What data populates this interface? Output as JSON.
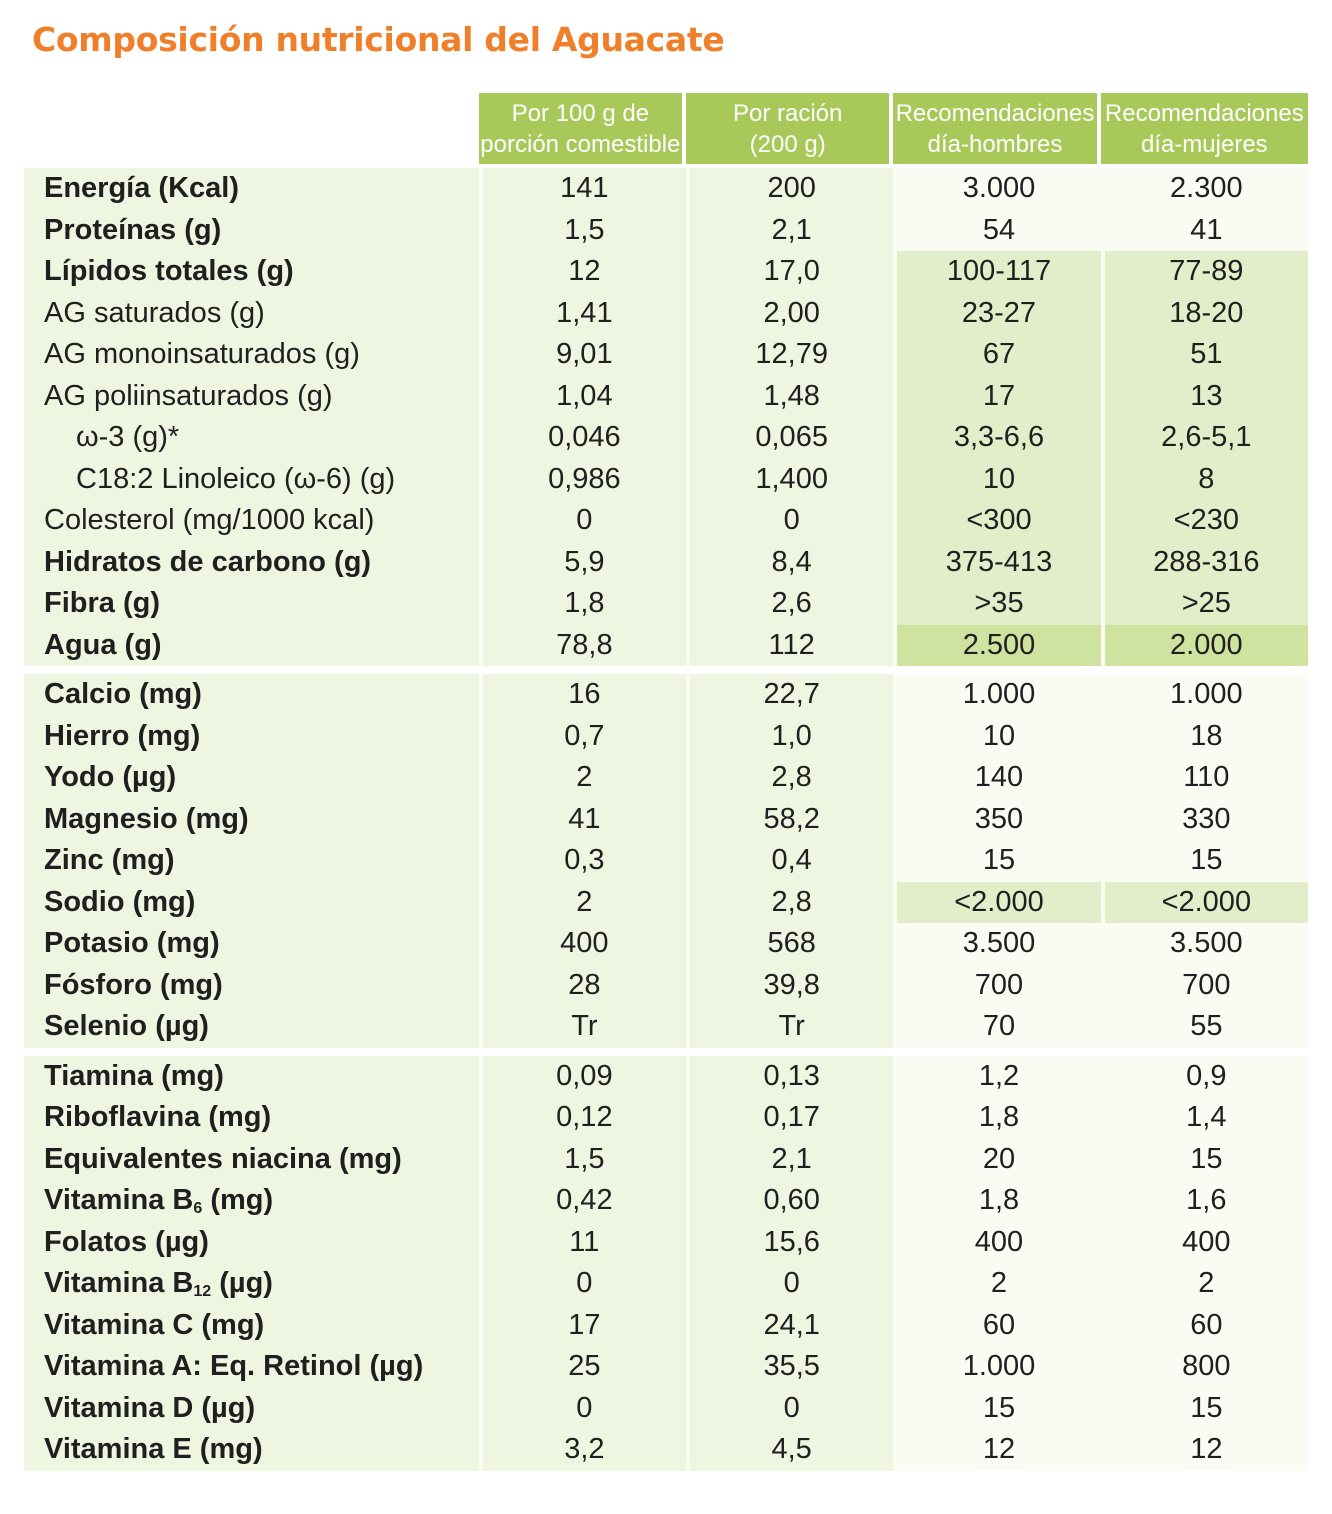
{
  "title": "Composición nutricional del Aguacate",
  "columns": {
    "per100": [
      "Por 100 g de",
      "porción comestible"
    ],
    "ration": [
      "Por ración",
      "(200 g)"
    ],
    "men": [
      "Recomendaciones",
      "día-hombres"
    ],
    "women": [
      "Recomendaciones",
      "día-mujeres"
    ]
  },
  "groups": [
    [
      {
        "label": "Energía (Kcal)",
        "bold": true,
        "v": [
          "141",
          "200",
          "3.000",
          "2.300"
        ],
        "hl": 0
      },
      {
        "label": "Proteínas (g)",
        "bold": true,
        "v": [
          "1,5",
          "2,1",
          "54",
          "41"
        ],
        "hl": 0
      },
      {
        "label": "Lípidos totales (g)",
        "bold": true,
        "v": [
          "12",
          "17,0",
          "100-117",
          "77-89"
        ],
        "hl": 1
      },
      {
        "label": "AG saturados (g)",
        "bold": false,
        "v": [
          "1,41",
          "2,00",
          "23-27",
          "18-20"
        ],
        "hl": 1
      },
      {
        "label": "AG monoinsaturados (g)",
        "bold": false,
        "v": [
          "9,01",
          "12,79",
          "67",
          "51"
        ],
        "hl": 1
      },
      {
        "label": "AG poliinsaturados (g)",
        "bold": false,
        "v": [
          "1,04",
          "1,48",
          "17",
          "13"
        ],
        "hl": 1
      },
      {
        "label": "ω-3 (g)*",
        "bold": false,
        "indent": true,
        "v": [
          "0,046",
          "0,065",
          "3,3-6,6",
          "2,6-5,1"
        ],
        "hl": 1
      },
      {
        "label": "C18:2 Linoleico (ω-6) (g)",
        "bold": false,
        "indent": true,
        "v": [
          "0,986",
          "1,400",
          "10",
          "8"
        ],
        "hl": 1
      },
      {
        "label": "Colesterol (mg/1000 kcal)",
        "bold": false,
        "v": [
          "0",
          "0",
          "<300",
          "<230"
        ],
        "hl": 1
      },
      {
        "label": "Hidratos de carbono (g)",
        "bold": true,
        "v": [
          "5,9",
          "8,4",
          "375-413",
          "288-316"
        ],
        "hl": 1
      },
      {
        "label": "Fibra (g)",
        "bold": true,
        "v": [
          "1,8",
          "2,6",
          ">35",
          ">25"
        ],
        "hl": 1
      },
      {
        "label": "Agua (g)",
        "bold": true,
        "v": [
          "78,8",
          "112",
          "2.500",
          "2.000"
        ],
        "hl": 2
      }
    ],
    [
      {
        "label": "Calcio (mg)",
        "bold": true,
        "v": [
          "16",
          "22,7",
          "1.000",
          "1.000"
        ],
        "hl": 0
      },
      {
        "label": "Hierro (mg)",
        "bold": true,
        "v": [
          "0,7",
          "1,0",
          "10",
          "18"
        ],
        "hl": 0
      },
      {
        "label": "Yodo (µg)",
        "bold": true,
        "v": [
          "2",
          "2,8",
          "140",
          "110"
        ],
        "hl": 0
      },
      {
        "label": "Magnesio (mg)",
        "bold": true,
        "v": [
          "41",
          "58,2",
          "350",
          "330"
        ],
        "hl": 0
      },
      {
        "label": "Zinc (mg)",
        "bold": true,
        "v": [
          "0,3",
          "0,4",
          "15",
          "15"
        ],
        "hl": 0
      },
      {
        "label": "Sodio (mg)",
        "bold": true,
        "v": [
          "2",
          "2,8",
          "<2.000",
          "<2.000"
        ],
        "hl": 1
      },
      {
        "label": "Potasio (mg)",
        "bold": true,
        "v": [
          "400",
          "568",
          "3.500",
          "3.500"
        ],
        "hl": 0
      },
      {
        "label": "Fósforo (mg)",
        "bold": true,
        "v": [
          "28",
          "39,8",
          "700",
          "700"
        ],
        "hl": 0
      },
      {
        "label": "Selenio (µg)",
        "bold": true,
        "v": [
          "Tr",
          "Tr",
          "70",
          "55"
        ],
        "hl": 0
      }
    ],
    [
      {
        "label": "Tiamina (mg)",
        "bold": true,
        "v": [
          "0,09",
          "0,13",
          "1,2",
          "0,9"
        ],
        "hl": 0
      },
      {
        "label": "Riboflavina (mg)",
        "bold": true,
        "v": [
          "0,12",
          "0,17",
          "1,8",
          "1,4"
        ],
        "hl": 0
      },
      {
        "label": "Equivalentes niacina (mg)",
        "bold": true,
        "v": [
          "1,5",
          "2,1",
          "20",
          "15"
        ],
        "hl": 0
      },
      {
        "label": "Vitamina B",
        "sub": "6",
        "after": " (mg)",
        "bold": true,
        "v": [
          "0,42",
          "0,60",
          "1,8",
          "1,6"
        ],
        "hl": 0
      },
      {
        "label": "Folatos (µg)",
        "bold": true,
        "v": [
          "11",
          "15,6",
          "400",
          "400"
        ],
        "hl": 0
      },
      {
        "label": "Vitamina B",
        "sub": "12",
        "after": " (µg)",
        "bold": true,
        "v": [
          "0",
          "0",
          "2",
          "2"
        ],
        "hl": 0
      },
      {
        "label": "Vitamina C (mg)",
        "bold": true,
        "v": [
          "17",
          "24,1",
          "60",
          "60"
        ],
        "hl": 0
      },
      {
        "label": "Vitamina A: Eq. Retinol (µg)",
        "bold": true,
        "v": [
          "25",
          "35,5",
          "1.000",
          "800"
        ],
        "hl": 0
      },
      {
        "label": "Vitamina D (µg)",
        "bold": true,
        "v": [
          "0",
          "0",
          "15",
          "15"
        ],
        "hl": 0
      },
      {
        "label": "Vitamina E (mg)",
        "bold": true,
        "v": [
          "3,2",
          "4,5",
          "12",
          "12"
        ],
        "hl": 0
      }
    ]
  ]
}
